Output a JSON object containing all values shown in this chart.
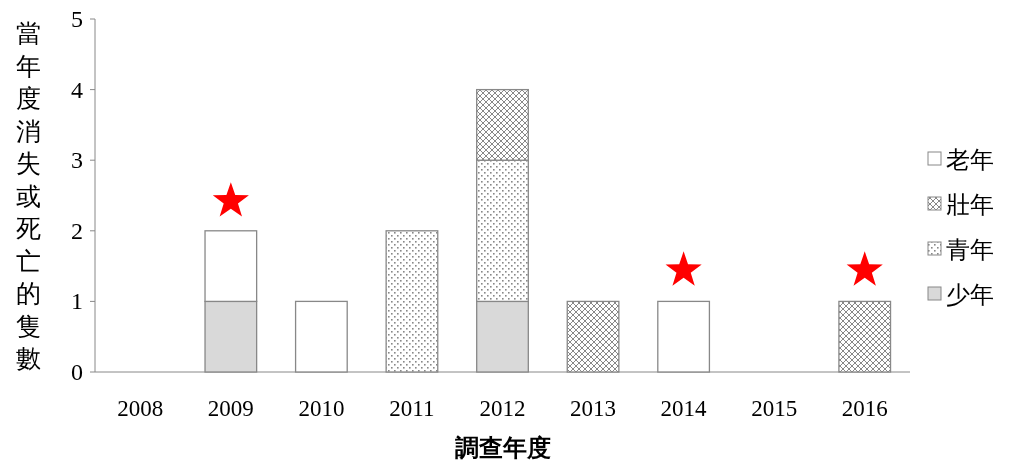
{
  "chart_data": {
    "type": "bar",
    "stacked": true,
    "xlabel": "調查年度",
    "ylabel": "當年度消失或死亡的隻數",
    "categories": [
      "2008",
      "2009",
      "2010",
      "2011",
      "2012",
      "2013",
      "2014",
      "2015",
      "2016"
    ],
    "ylim": [
      0,
      5
    ],
    "yticks": [
      0,
      1,
      2,
      3,
      4,
      5
    ],
    "grid": false,
    "legend": "right",
    "series": [
      {
        "name": "少年",
        "color": "#d9d9d9",
        "values": [
          0,
          1,
          0,
          0,
          1,
          0,
          0,
          0,
          0
        ]
      },
      {
        "name": "青年",
        "color": "#888888",
        "values": [
          0,
          0,
          0,
          2,
          2,
          0,
          0,
          0,
          0
        ]
      },
      {
        "name": "壯年",
        "color": "#888888",
        "values": [
          0,
          0,
          0,
          0,
          1,
          1,
          0,
          0,
          1
        ]
      },
      {
        "name": "老年",
        "color": "#ffffff",
        "values": [
          0,
          1,
          1,
          0,
          0,
          0,
          1,
          0,
          0
        ]
      },
      {
        "type": "scatter",
        "marker": "star",
        "color": "#ff0000",
        "values": [
          null,
          2.42,
          null,
          null,
          null,
          null,
          1.44,
          null,
          1.44
        ]
      }
    ]
  }
}
